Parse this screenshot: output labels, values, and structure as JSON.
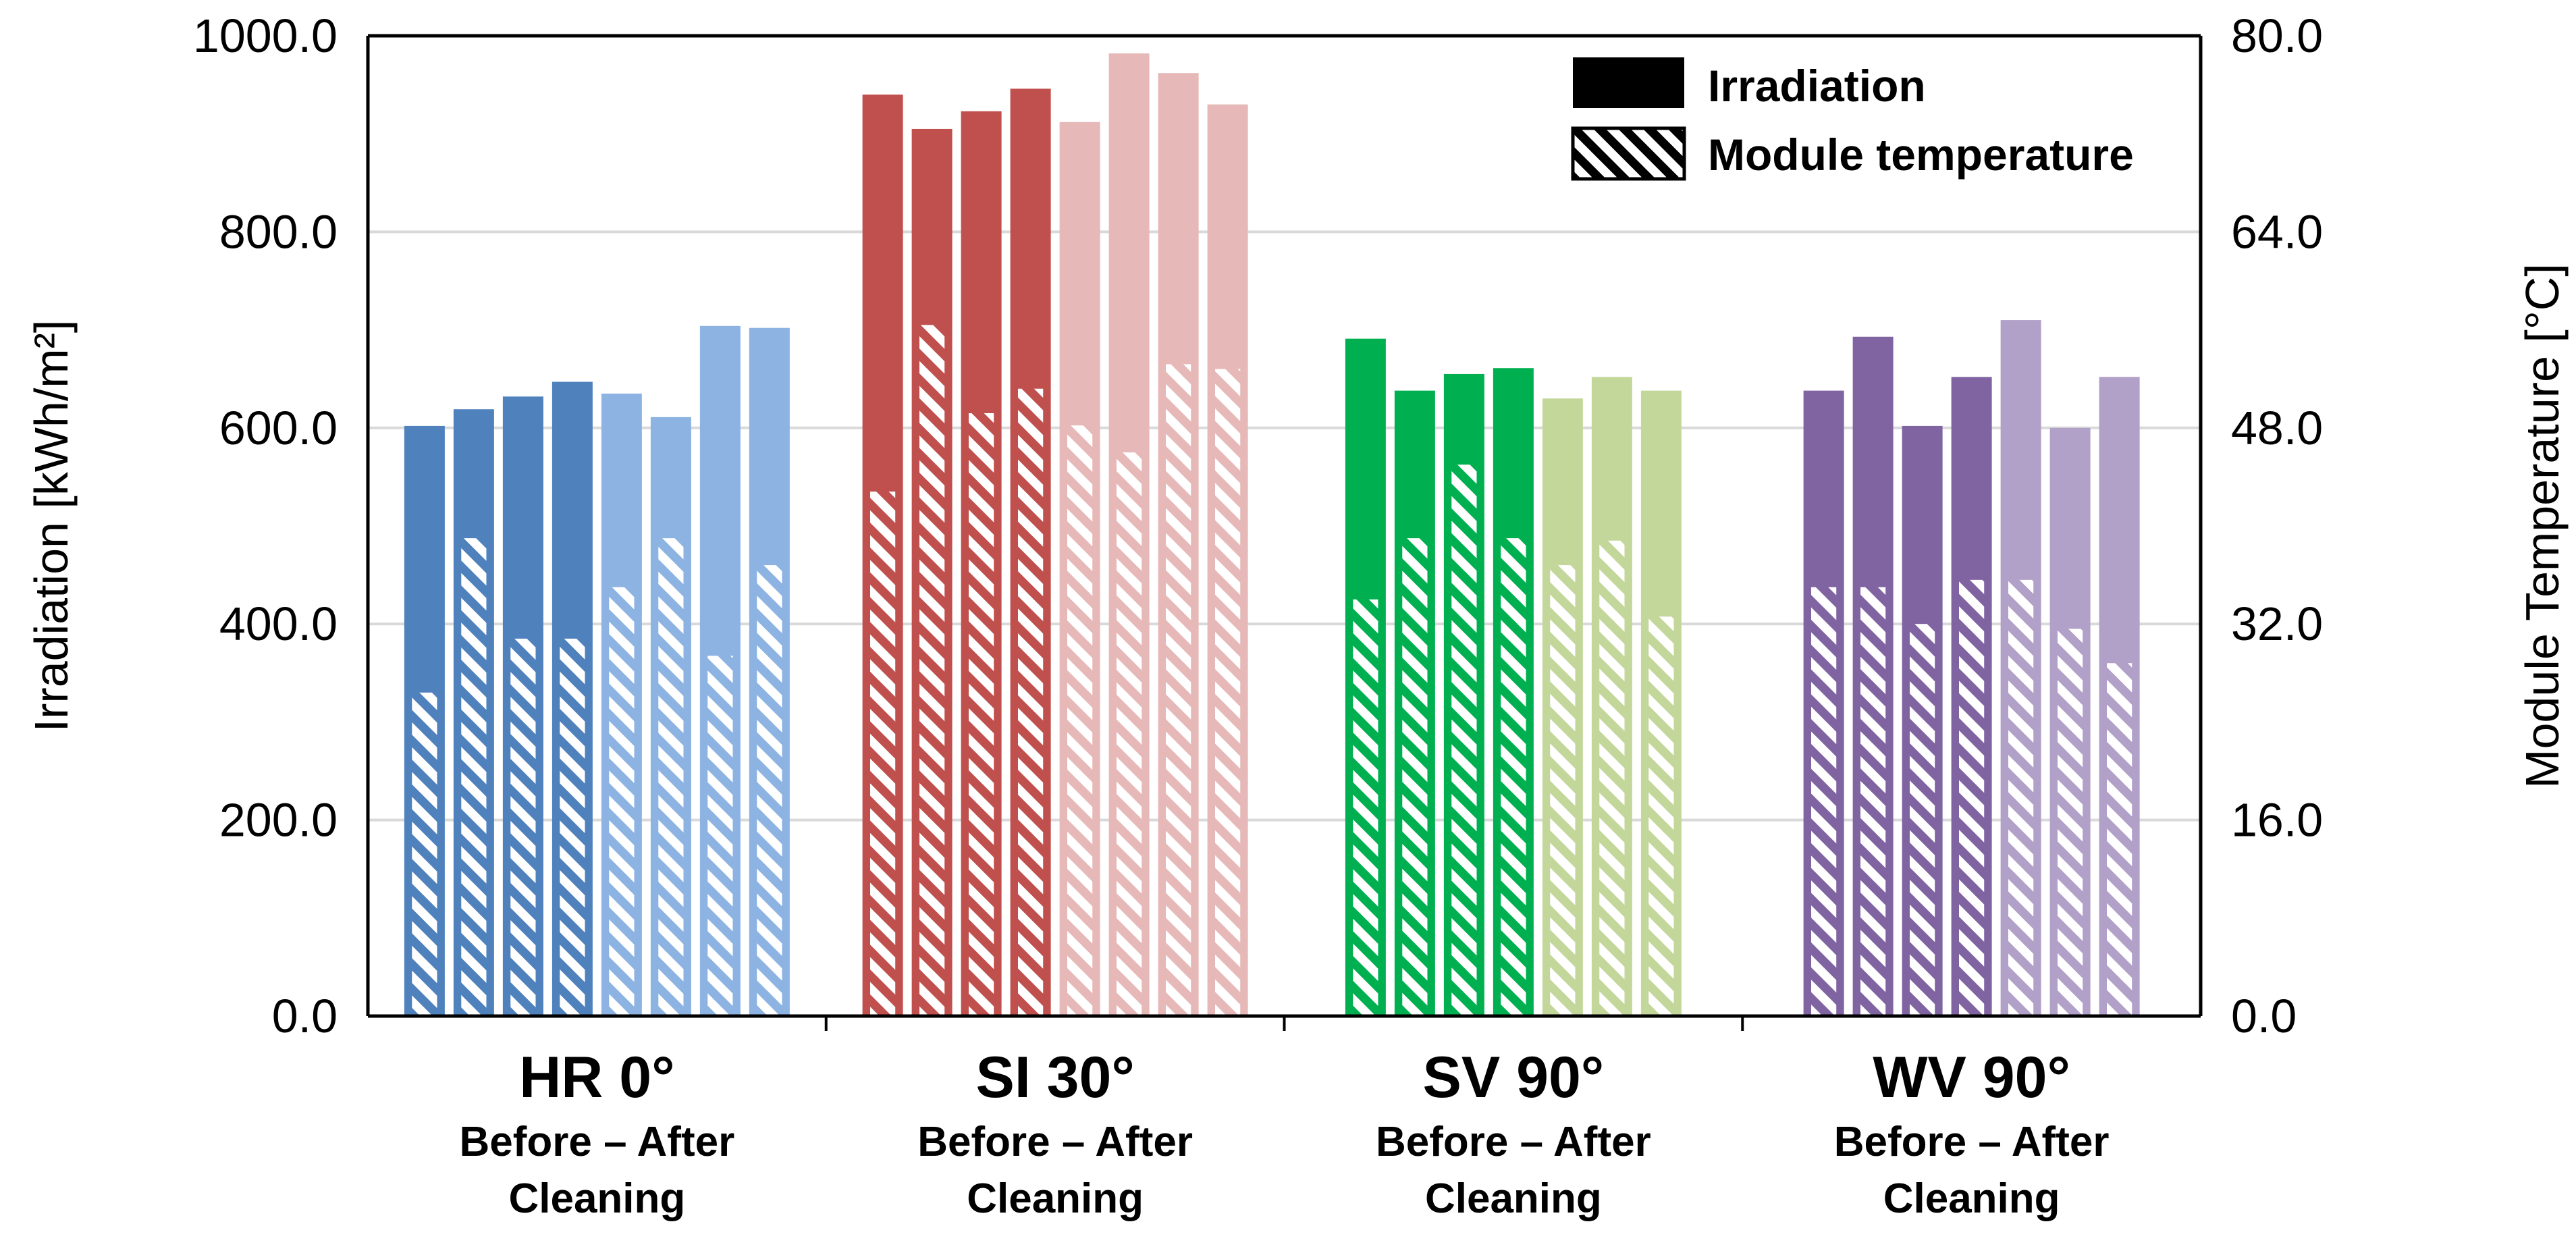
{
  "chart_data": {
    "type": "bar",
    "title": "",
    "left_axis": {
      "label": "Irradiation [kWh/m²]",
      "ylim": [
        0,
        1000
      ],
      "ticks": [
        "0.0",
        "200.0",
        "400.0",
        "600.0",
        "800.0",
        "1000.0"
      ],
      "tick_values": [
        0,
        200,
        400,
        600,
        800,
        1000
      ]
    },
    "right_axis": {
      "label": "Module Temperature [°C]",
      "ylim": [
        0,
        80
      ],
      "ticks": [
        "0.0",
        "16.0",
        "32.0",
        "48.0",
        "64.0",
        "80.0"
      ],
      "tick_values": [
        0,
        16,
        32,
        48,
        64,
        80
      ]
    },
    "grid": true,
    "legend": {
      "position": "top-right",
      "entries": [
        {
          "name": "Irradiation",
          "style": "solid"
        },
        {
          "name": "Module temperature",
          "style": "hatched"
        }
      ]
    },
    "groups": [
      {
        "label": "HR 0°",
        "sublabel_1": "Before – After",
        "sublabel_2": "Cleaning",
        "color_before": "#4f81bd",
        "color_after": "#8db3e2",
        "irradiation": [
          602,
          619,
          632,
          647,
          635,
          611,
          704,
          702
        ],
        "module_temperature": [
          26.4,
          39.0,
          30.8,
          30.8,
          35.0,
          39.0,
          29.4,
          36.8
        ]
      },
      {
        "label": "SI 30°",
        "sublabel_1": "Before – After",
        "sublabel_2": "Cleaning",
        "color_before": "#c0504d",
        "color_after": "#e6b9b8",
        "irradiation": [
          940,
          905,
          923,
          946,
          912,
          982,
          962,
          930
        ],
        "module_temperature": [
          42.8,
          56.4,
          49.2,
          51.2,
          48.2,
          46.0,
          53.2,
          52.8
        ]
      },
      {
        "label": "SV 90°",
        "sublabel_1": "Before – After",
        "sublabel_2": "Cleaning",
        "color_before": "#00b050",
        "color_after": "#c4d79b",
        "irradiation": [
          691,
          638,
          655,
          661,
          630,
          652,
          638
        ],
        "module_temperature": [
          34.0,
          39.0,
          45.0,
          39.0,
          36.8,
          38.8,
          32.6
        ]
      },
      {
        "label": "WV 90°",
        "sublabel_1": "Before – After",
        "sublabel_2": "Cleaning",
        "color_before": "#8064a2",
        "color_after": "#b1a0c7",
        "irradiation": [
          638,
          693,
          602,
          652,
          710,
          600,
          652
        ],
        "module_temperature": [
          35.0,
          35.0,
          32.0,
          35.6,
          35.6,
          31.6,
          28.8
        ]
      }
    ],
    "before_counts": [
      4,
      4,
      4,
      4
    ]
  }
}
